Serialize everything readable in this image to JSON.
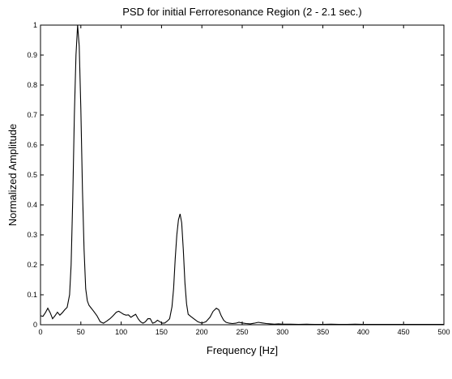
{
  "chart_data": {
    "type": "line",
    "title": "PSD for initial Ferroresonance Region (2 - 2.1 sec.)",
    "xlabel": "Frequency [Hz]",
    "ylabel": "Normalized Amplitude",
    "xlim": [
      0,
      500
    ],
    "ylim": [
      0,
      1
    ],
    "xticks": [
      0,
      50,
      100,
      150,
      200,
      250,
      300,
      350,
      400,
      450,
      500
    ],
    "yticks": [
      0,
      0.1,
      0.2,
      0.3,
      0.4,
      0.5,
      0.6,
      0.7,
      0.8,
      0.9,
      1
    ],
    "xtick_labels": [
      "0",
      "50",
      "100",
      "150",
      "200",
      "250",
      "300",
      "350",
      "400",
      "450",
      "500"
    ],
    "ytick_labels": [
      "0",
      "0.1",
      "0.2",
      "0.3",
      "0.4",
      "0.5",
      "0.6",
      "0.7",
      "0.8",
      "0.9",
      "1"
    ],
    "grid": false,
    "line_color": "#000000",
    "series": [
      {
        "x": [
          0,
          3,
          6,
          9,
          12,
          15,
          18,
          21,
          24,
          27,
          30,
          33,
          36,
          38,
          40,
          42,
          44,
          46,
          48,
          50,
          52,
          54,
          56,
          58,
          60,
          63,
          66,
          70,
          74,
          78,
          82,
          86,
          90,
          94,
          97,
          100,
          103,
          106,
          109,
          112,
          115,
          118,
          121,
          124,
          127,
          130,
          133,
          136,
          139,
          142,
          145,
          148,
          151,
          154,
          157,
          160,
          163,
          165,
          167,
          169,
          171,
          173,
          175,
          177,
          179,
          181,
          183,
          186,
          190,
          195,
          200,
          205,
          210,
          214,
          218,
          221,
          224,
          227,
          230,
          234,
          238,
          242,
          246,
          250,
          255,
          260,
          265,
          270,
          275,
          280,
          285,
          290,
          295,
          300,
          310,
          320,
          330,
          340,
          350,
          360,
          370,
          380,
          390,
          400,
          410,
          420,
          430,
          440,
          450,
          460,
          470,
          480,
          490,
          500
        ],
        "y": [
          0.03,
          0.028,
          0.04,
          0.055,
          0.04,
          0.02,
          0.03,
          0.042,
          0.032,
          0.04,
          0.05,
          0.058,
          0.1,
          0.2,
          0.42,
          0.7,
          0.9,
          1.0,
          0.93,
          0.72,
          0.45,
          0.25,
          0.12,
          0.08,
          0.065,
          0.055,
          0.045,
          0.03,
          0.01,
          0.005,
          0.012,
          0.02,
          0.03,
          0.042,
          0.045,
          0.04,
          0.035,
          0.032,
          0.033,
          0.025,
          0.03,
          0.035,
          0.02,
          0.01,
          0.005,
          0.01,
          0.02,
          0.02,
          0.005,
          0.008,
          0.015,
          0.01,
          0.005,
          0.006,
          0.012,
          0.02,
          0.06,
          0.12,
          0.22,
          0.3,
          0.35,
          0.37,
          0.34,
          0.25,
          0.14,
          0.07,
          0.035,
          0.028,
          0.02,
          0.01,
          0.005,
          0.01,
          0.025,
          0.045,
          0.055,
          0.05,
          0.03,
          0.015,
          0.008,
          0.005,
          0.004,
          0.005,
          0.008,
          0.006,
          0.004,
          0.003,
          0.005,
          0.008,
          0.006,
          0.004,
          0.003,
          0.002,
          0.003,
          0.002,
          0.002,
          0.001,
          0.002,
          0.001,
          0.001,
          0.002,
          0.001,
          0.001,
          0.002,
          0.001,
          0.001,
          0.001,
          0.001,
          0.001,
          0.001,
          0.001,
          0.001,
          0.001,
          0.001,
          0.001
        ]
      }
    ]
  }
}
